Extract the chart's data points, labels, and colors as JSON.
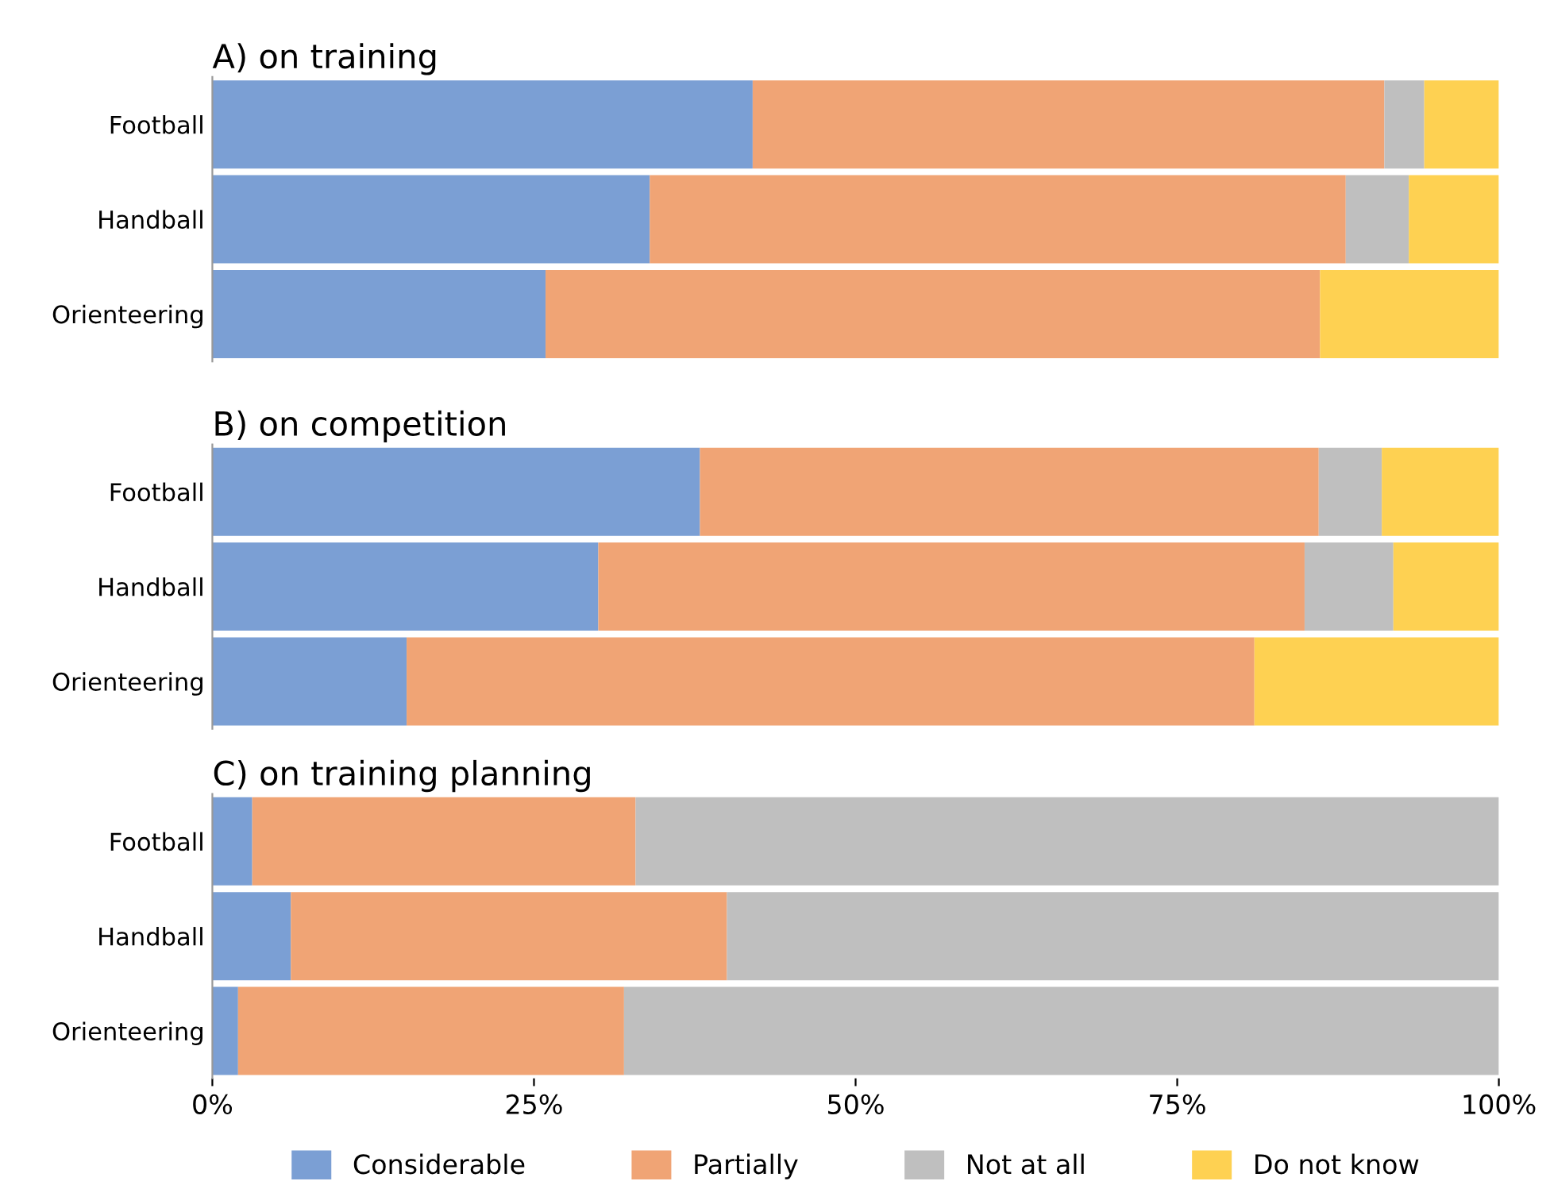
{
  "chart_data": [
    {
      "type": "bar",
      "orientation": "horizontal",
      "stacked": true,
      "title": "A) on training",
      "categories": [
        "Football",
        "Handball",
        "Orienteering"
      ],
      "xlim": [
        0,
        100
      ],
      "tick_labels": "y",
      "series": [
        {
          "color": "#7b9fd4",
          "values": [
            42.0,
            34.0,
            25.9
          ]
        },
        {
          "color": "#f0a475",
          "values": [
            49.1,
            54.1,
            60.2
          ]
        },
        {
          "color": "#bfbfbf",
          "values": [
            3.1,
            4.9,
            null
          ]
        },
        {
          "color": "#fed152",
          "values": [
            5.8,
            7.0,
            13.9
          ]
        }
      ]
    },
    {
      "type": "bar",
      "orientation": "horizontal",
      "stacked": true,
      "title": "B) on competition",
      "categories": [
        "Football",
        "Handball",
        "Orienteering"
      ],
      "xlim": [
        0,
        100
      ],
      "tick_labels": "y",
      "series": [
        {
          "color": "#7b9fd4",
          "values": [
            37.9,
            30.0,
            15.1
          ]
        },
        {
          "color": "#f0a475",
          "values": [
            48.1,
            54.9,
            65.9
          ]
        },
        {
          "color": "#bfbfbf",
          "values": [
            4.9,
            6.9,
            null
          ]
        },
        {
          "color": "#fed152",
          "values": [
            9.1,
            8.2,
            19.0
          ]
        }
      ]
    },
    {
      "type": "bar",
      "orientation": "horizontal",
      "stacked": true,
      "title": "C) on training planning",
      "categories": [
        "Football",
        "Handball",
        "Orienteering"
      ],
      "xlim": [
        0,
        100
      ],
      "xticks": [
        {
          "value": 0,
          "label": "0%"
        },
        {
          "value": 25,
          "label": "25%"
        },
        {
          "value": 50,
          "label": "50%"
        },
        {
          "value": 75,
          "label": "75%"
        },
        {
          "value": 100,
          "label": "100%"
        }
      ],
      "legend": "bottom",
      "series": [
        {
          "name": "Considerable",
          "color": "#7b9fd4",
          "values": [
            3.1,
            6.1,
            2.0
          ]
        },
        {
          "name": "Partially",
          "color": "#f0a475",
          "values": [
            29.8,
            33.9,
            30.0
          ]
        },
        {
          "name": "Not at all",
          "color": "#bfbfbf",
          "values": [
            67.1,
            60.0,
            68.0
          ]
        },
        {
          "name": "Do not know",
          "color": "#fed152",
          "values": [
            null,
            null,
            null
          ]
        }
      ]
    }
  ]
}
